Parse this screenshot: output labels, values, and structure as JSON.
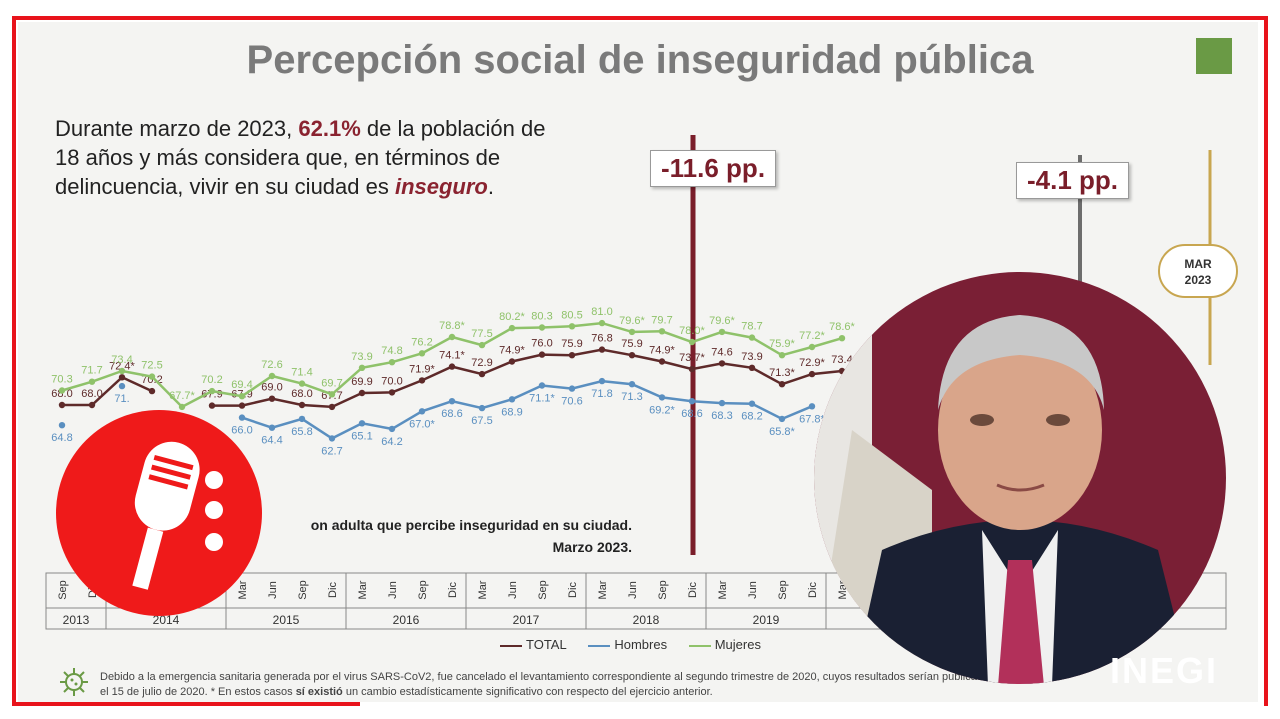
{
  "slide": {
    "title": "Percepción social de inseguridad pública",
    "intro": {
      "part1": "Durante marzo de 2023, ",
      "percent": "62.1%",
      "part2": " de la población de 18 años y más considera que, en términos de delincuencia, vivir en su ciudad es ",
      "word": "inseguro",
      "part3": "."
    },
    "callout_a": "-11.6 pp.",
    "callout_b": "-4.1 pp.",
    "badge": {
      "line1": "MAR",
      "line2": "2023"
    },
    "caption": {
      "line1": "on adulta que percibe inseguridad en su ciudad.",
      "line2": "Marzo 2023."
    },
    "legend": {
      "total": "TOTAL",
      "men": "Hombres",
      "women": "Mujeres"
    },
    "footnote": {
      "text1": "Debido a la emergencia sanitaria generada por el virus SARS-CoV2, fue cancelado el levantamiento correspondiente al segundo trimestre de 2020, cuyos resultados serían publicados el 15 de julio de 2020. * En estos casos ",
      "bold": "sí existió",
      "text2": " un cambio estadísticamente significativo con respecto del ejercicio anterior."
    },
    "watermark": "INEGI"
  },
  "colors": {
    "frame": "#e8131b",
    "total": "#5e2a2a",
    "men": "#5a8fc0",
    "women": "#8fc26a",
    "accent_dark_red": "#7a1e2a",
    "green_square": "#6a9a45"
  },
  "icons": [
    "microphone-icon",
    "virus-icon"
  ],
  "chart_data": {
    "type": "line",
    "categories": [
      "Sep 2013",
      "Dic 2013",
      "Mar 2014",
      "Jun 2014",
      "Sep 2014",
      "Dic 2014",
      "Mar 2015",
      "Jun 2015",
      "Sep 2015",
      "Dic 2015",
      "Mar 2016",
      "Jun 2016",
      "Sep 2016",
      "Dic 2016",
      "Mar 2017",
      "Jun 2017",
      "Sep 2017",
      "Dic 2017",
      "Mar 2018",
      "Jun 2018",
      "Sep 2018",
      "Dic 2018",
      "Mar 2019",
      "Jun 2019",
      "Sep 2019",
      "Dic 2019",
      "Mar 2020"
    ],
    "x_months": [
      "Sep",
      "Dic",
      "Mar",
      "Jun",
      "Sep",
      "Dic",
      "Mar",
      "Jun",
      "Sep",
      "Dic",
      "Mar",
      "Jun",
      "Sep",
      "Dic",
      "Mar",
      "Jun",
      "Sep",
      "Dic",
      "Mar",
      "Jun",
      "Sep",
      "Dic",
      "Mar",
      "Jun",
      "Sep",
      "Dic",
      "Mar"
    ],
    "x_years": [
      "2013",
      "2014",
      "2015",
      "2016",
      "2017",
      "2018",
      "2019"
    ],
    "series": [
      {
        "name": "TOTAL",
        "values": [
          68.0,
          68.0,
          72.4,
          70.2,
          null,
          67.9,
          67.9,
          69.0,
          68.0,
          67.7,
          69.9,
          70.0,
          71.9,
          74.1,
          72.9,
          74.9,
          76.0,
          75.9,
          76.8,
          75.9,
          74.9,
          73.7,
          74.6,
          73.9,
          71.3,
          72.9,
          73.4
        ],
        "labels": [
          "68.0",
          "68.0",
          "72.4*",
          "70.2",
          "",
          "67.9",
          "67.9",
          "69.0",
          "68.0",
          "67.7",
          "69.9",
          "70.0",
          "71.9*",
          "74.1*",
          "72.9",
          "74.9*",
          "76.0",
          "75.9",
          "76.8",
          "75.9",
          "74.9*",
          "73.7*",
          "74.6",
          "73.9",
          "71.3*",
          "72.9*",
          "73.4"
        ]
      },
      {
        "name": "Hombres",
        "values": [
          64.8,
          null,
          71.0,
          null,
          null,
          null,
          66.0,
          64.4,
          65.8,
          62.7,
          65.1,
          64.2,
          67.0,
          68.6,
          67.5,
          68.9,
          71.1,
          70.6,
          71.8,
          71.3,
          69.2,
          68.6,
          68.3,
          68.2,
          65.8,
          67.8,
          null
        ],
        "labels": [
          "64.8",
          "",
          "71.",
          "",
          "",
          "",
          "66.0",
          "64.4",
          "65.8",
          "62.7",
          "65.1",
          "64.2",
          "67.0*",
          "68.6",
          "67.5",
          "68.9",
          "71.1*",
          "70.6",
          "71.8",
          "71.3",
          "69.2*",
          "68.6",
          "68.3",
          "68.2",
          "65.8*",
          "67.8*",
          ""
        ]
      },
      {
        "name": "Mujeres",
        "values": [
          70.3,
          71.7,
          73.4,
          72.5,
          67.7,
          70.2,
          69.4,
          72.6,
          71.4,
          69.7,
          73.9,
          74.8,
          76.2,
          78.8,
          77.5,
          80.2,
          80.3,
          80.5,
          81.0,
          79.6,
          79.7,
          78.0,
          79.6,
          78.7,
          75.9,
          77.2,
          78.6
        ],
        "labels": [
          "70.3",
          "71.7",
          "73.4",
          "72.5",
          "67.7*",
          "70.2",
          "69.4",
          "72.6",
          "71.4",
          "69.7",
          "73.9",
          "74.8",
          "76.2",
          "78.8*",
          "77.5",
          "80.2*",
          "80.3",
          "80.5",
          "81.0",
          "79.6*",
          "79.7",
          "78.0*",
          "79.6*",
          "78.7",
          "75.9*",
          "77.2*",
          "78.6*"
        ]
      }
    ],
    "xlabel": "",
    "ylabel": ""
  }
}
